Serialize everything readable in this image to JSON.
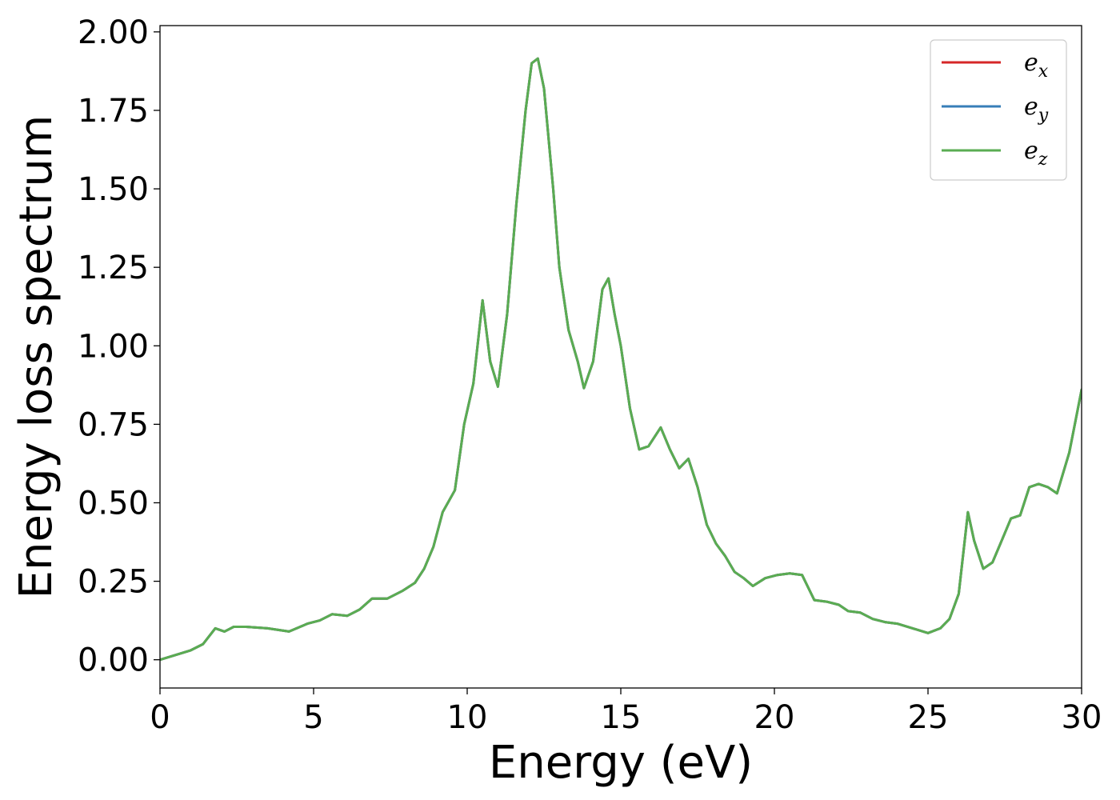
{
  "chart_data": {
    "type": "line",
    "title": "",
    "xlabel": "Energy (eV)",
    "ylabel": "Energy loss spectrum",
    "xlim": [
      0,
      30
    ],
    "ylim": [
      -0.09,
      2.02
    ],
    "xticks": [
      0,
      5,
      10,
      15,
      20,
      25,
      30
    ],
    "xtick_labels": [
      "0",
      "5",
      "10",
      "15",
      "20",
      "25",
      "30"
    ],
    "yticks": [
      0.0,
      0.25,
      0.5,
      0.75,
      1.0,
      1.25,
      1.5,
      1.75,
      2.0
    ],
    "ytick_labels": [
      "0.00",
      "0.25",
      "0.50",
      "0.75",
      "1.00",
      "1.25",
      "1.50",
      "1.75",
      "2.00"
    ],
    "grid": false,
    "legend_position": "top-right",
    "x": [
      0,
      0.5,
      1.0,
      1.4,
      1.8,
      2.1,
      2.4,
      2.8,
      3.5,
      4.2,
      4.8,
      5.2,
      5.6,
      6.1,
      6.5,
      6.9,
      7.4,
      7.9,
      8.3,
      8.6,
      8.9,
      9.2,
      9.6,
      9.9,
      10.2,
      10.5,
      10.75,
      11.0,
      11.3,
      11.6,
      11.9,
      12.1,
      12.3,
      12.5,
      12.8,
      13.0,
      13.3,
      13.6,
      13.8,
      14.1,
      14.4,
      14.6,
      14.8,
      15.0,
      15.3,
      15.6,
      15.9,
      16.3,
      16.6,
      16.9,
      17.2,
      17.5,
      17.8,
      18.1,
      18.4,
      18.7,
      19.0,
      19.3,
      19.7,
      20.1,
      20.5,
      20.9,
      21.3,
      21.7,
      22.1,
      22.4,
      22.8,
      23.2,
      23.6,
      24.0,
      24.5,
      25.0,
      25.4,
      25.7,
      26.0,
      26.3,
      26.5,
      26.8,
      27.1,
      27.4,
      27.7,
      28.0,
      28.3,
      28.6,
      28.9,
      29.2,
      29.6,
      30.0
    ],
    "series": [
      {
        "name": "e_x",
        "color": "#d62728",
        "values": [
          0.0,
          0.015,
          0.03,
          0.05,
          0.1,
          0.09,
          0.105,
          0.105,
          0.1,
          0.09,
          0.115,
          0.125,
          0.145,
          0.14,
          0.16,
          0.195,
          0.195,
          0.22,
          0.245,
          0.29,
          0.36,
          0.47,
          0.54,
          0.75,
          0.88,
          1.145,
          0.95,
          0.87,
          1.1,
          1.45,
          1.75,
          1.9,
          1.915,
          1.82,
          1.5,
          1.25,
          1.05,
          0.95,
          0.865,
          0.95,
          1.18,
          1.215,
          1.1,
          1.0,
          0.8,
          0.67,
          0.68,
          0.74,
          0.67,
          0.61,
          0.64,
          0.55,
          0.43,
          0.37,
          0.33,
          0.28,
          0.26,
          0.235,
          0.26,
          0.27,
          0.275,
          0.27,
          0.19,
          0.185,
          0.175,
          0.155,
          0.15,
          0.13,
          0.12,
          0.115,
          0.1,
          0.085,
          0.1,
          0.13,
          0.21,
          0.47,
          0.38,
          0.29,
          0.31,
          0.38,
          0.45,
          0.46,
          0.55,
          0.56,
          0.55,
          0.53,
          0.66,
          0.86
        ]
      },
      {
        "name": "e_y",
        "color": "#377eb8",
        "values": [
          0.0,
          0.015,
          0.03,
          0.05,
          0.1,
          0.09,
          0.105,
          0.105,
          0.1,
          0.09,
          0.115,
          0.125,
          0.145,
          0.14,
          0.16,
          0.195,
          0.195,
          0.22,
          0.245,
          0.29,
          0.36,
          0.47,
          0.54,
          0.75,
          0.88,
          1.145,
          0.95,
          0.87,
          1.1,
          1.45,
          1.75,
          1.9,
          1.915,
          1.82,
          1.5,
          1.25,
          1.05,
          0.95,
          0.865,
          0.95,
          1.18,
          1.215,
          1.1,
          1.0,
          0.8,
          0.67,
          0.68,
          0.74,
          0.67,
          0.61,
          0.64,
          0.55,
          0.43,
          0.37,
          0.33,
          0.28,
          0.26,
          0.235,
          0.26,
          0.27,
          0.275,
          0.27,
          0.19,
          0.185,
          0.175,
          0.155,
          0.15,
          0.13,
          0.12,
          0.115,
          0.1,
          0.085,
          0.1,
          0.13,
          0.21,
          0.47,
          0.38,
          0.29,
          0.31,
          0.38,
          0.45,
          0.46,
          0.55,
          0.56,
          0.55,
          0.53,
          0.66,
          0.86
        ]
      },
      {
        "name": "e_z",
        "color": "#5aac52",
        "values": [
          0.0,
          0.015,
          0.03,
          0.05,
          0.1,
          0.09,
          0.105,
          0.105,
          0.1,
          0.09,
          0.115,
          0.125,
          0.145,
          0.14,
          0.16,
          0.195,
          0.195,
          0.22,
          0.245,
          0.29,
          0.36,
          0.47,
          0.54,
          0.75,
          0.88,
          1.145,
          0.95,
          0.87,
          1.1,
          1.45,
          1.75,
          1.9,
          1.915,
          1.82,
          1.5,
          1.25,
          1.05,
          0.95,
          0.865,
          0.95,
          1.18,
          1.215,
          1.1,
          1.0,
          0.8,
          0.67,
          0.68,
          0.74,
          0.67,
          0.61,
          0.64,
          0.55,
          0.43,
          0.37,
          0.33,
          0.28,
          0.26,
          0.235,
          0.26,
          0.27,
          0.275,
          0.27,
          0.19,
          0.185,
          0.175,
          0.155,
          0.15,
          0.13,
          0.12,
          0.115,
          0.1,
          0.085,
          0.1,
          0.13,
          0.21,
          0.47,
          0.38,
          0.29,
          0.31,
          0.38,
          0.45,
          0.46,
          0.55,
          0.56,
          0.55,
          0.53,
          0.66,
          0.86
        ]
      }
    ],
    "legend": [
      {
        "base": "e",
        "sub": "x",
        "color": "#d62728"
      },
      {
        "base": "e",
        "sub": "y",
        "color": "#377eb8"
      },
      {
        "base": "e",
        "sub": "z",
        "color": "#5aac52"
      }
    ]
  }
}
